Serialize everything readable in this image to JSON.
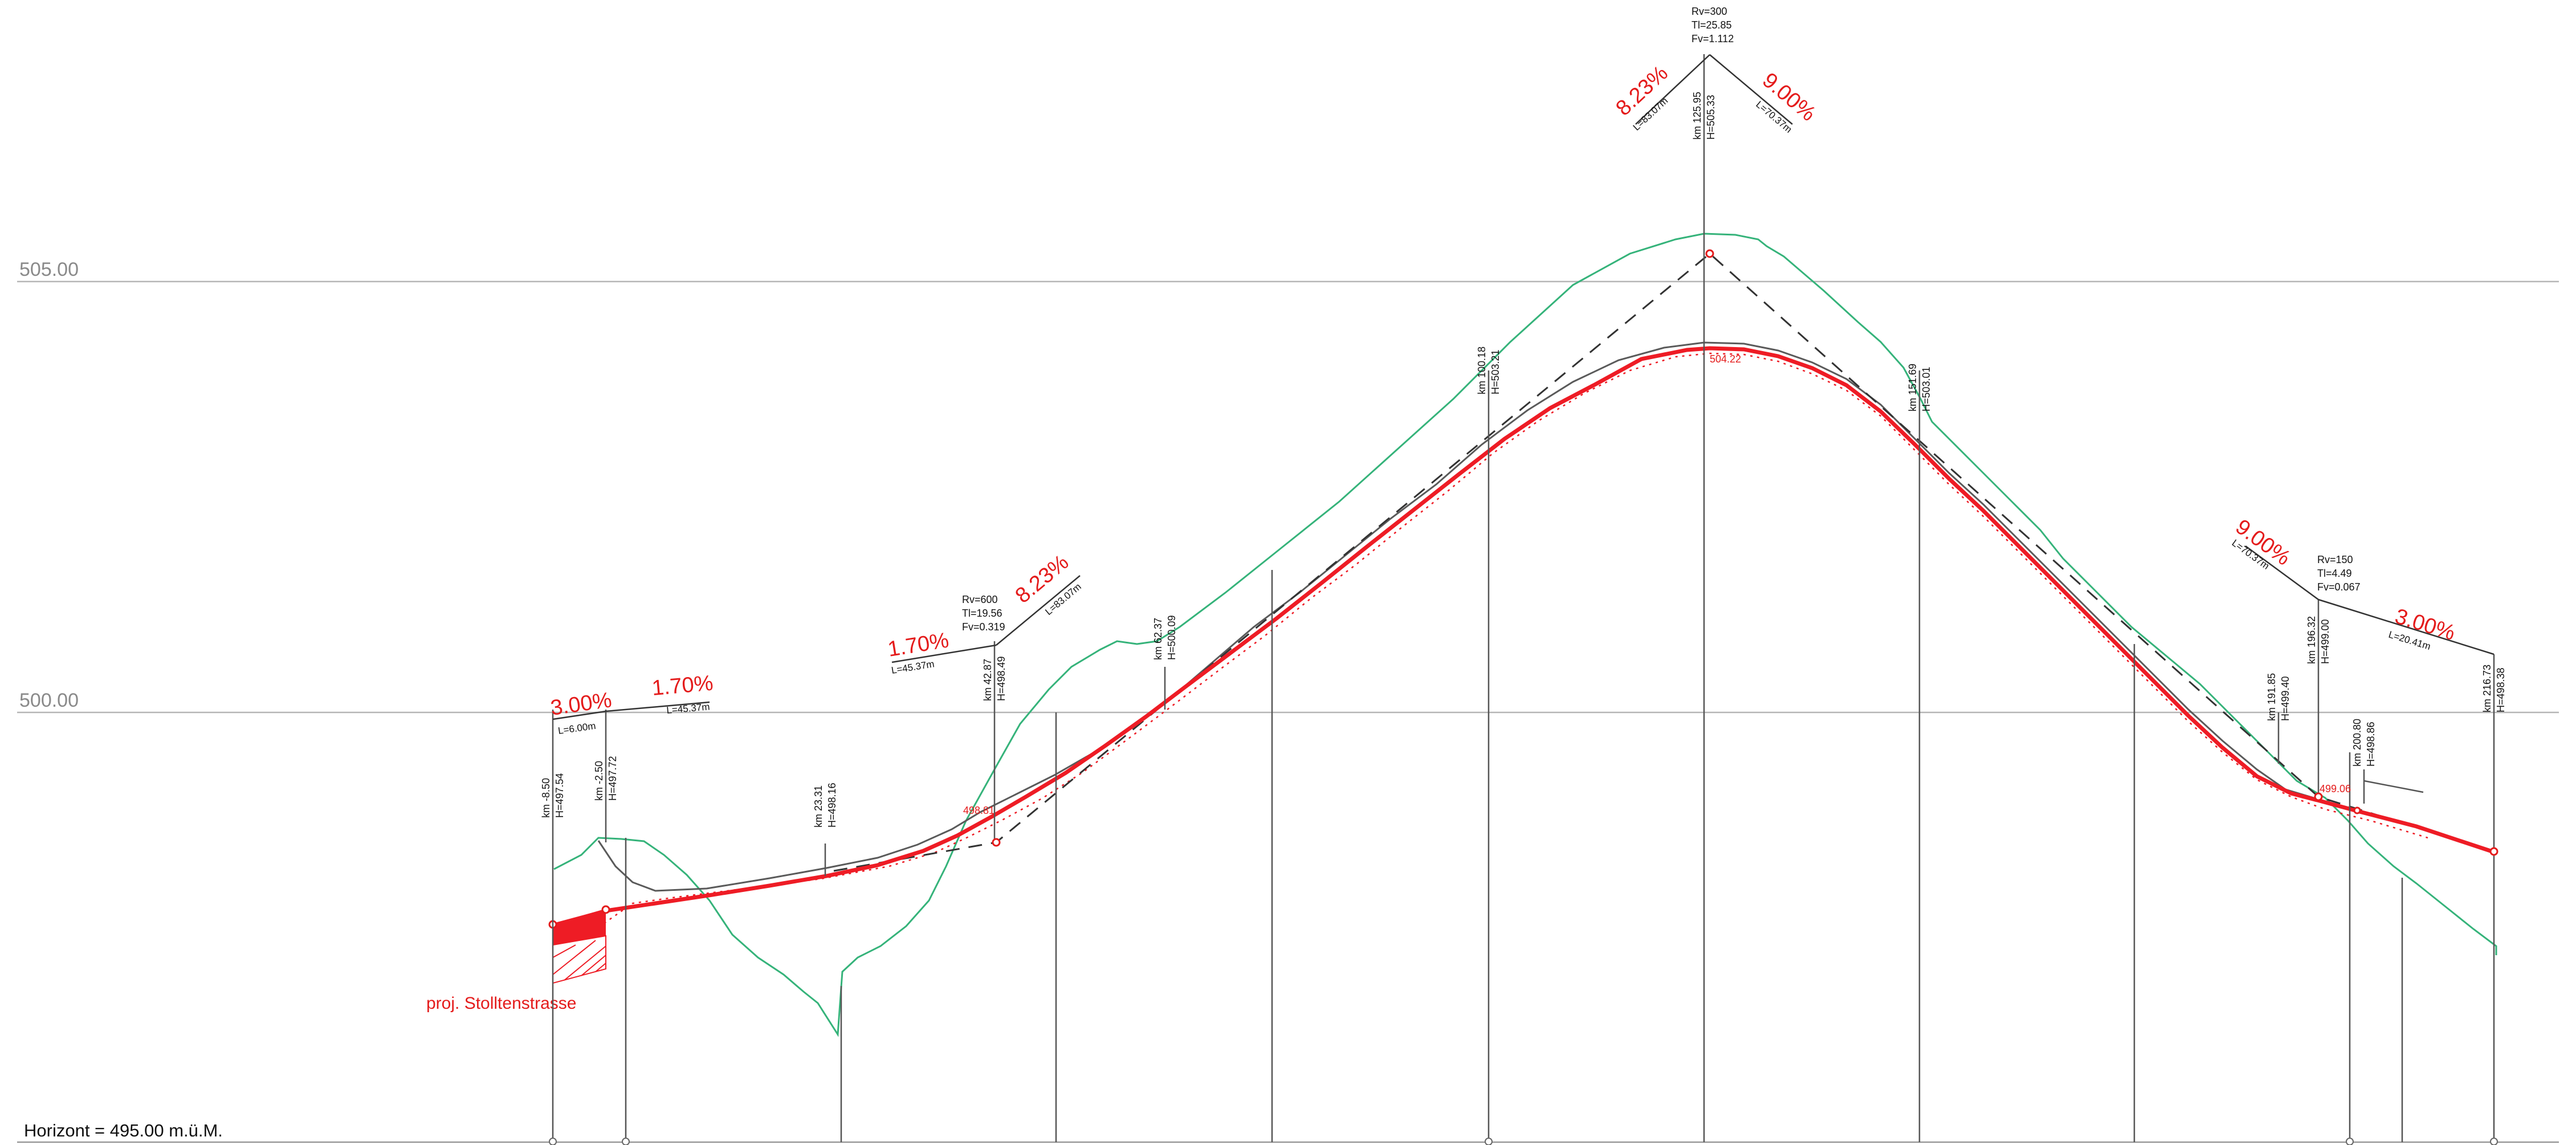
{
  "horizont": "Horizont = 495.00 m.ü.M.",
  "grid_lines": [
    {
      "label": "505.00",
      "elevation": 505.0
    },
    {
      "label": "500.00",
      "elevation": 500.0
    }
  ],
  "stations": [
    {
      "km": "km -8.50",
      "h": "H=497.54",
      "station": -8.5
    },
    {
      "km": "km -2.50",
      "h": "H=497.72",
      "station": -2.5
    },
    {
      "km": "km 23.31",
      "h": "H=498.16",
      "station": 23.31
    },
    {
      "km": "km 42.87",
      "h": "H=498.49",
      "station": 42.87
    },
    {
      "km": "km 62.37",
      "h": "H=500.09",
      "station": 62.37
    },
    {
      "km": "km 100.18",
      "h": "H=503.21",
      "station": 100.18
    },
    {
      "km": "km 125.95",
      "h": "H=505.33",
      "station": 125.95
    },
    {
      "km": "km 151.69",
      "h": "H=503.01",
      "station": 151.69
    },
    {
      "km": "km 191.85",
      "h": "H=499.40",
      "station": 191.85
    },
    {
      "km": "km 196.32",
      "h": "H=499.00",
      "station": 196.32
    },
    {
      "km": "km 200.80",
      "h": "H=498.86",
      "station": 200.8
    },
    {
      "km": "km 216.73",
      "h": "H=498.38",
      "station": 216.73
    }
  ],
  "grades": [
    {
      "pct": "3.00%",
      "len": "L=6.00m"
    },
    {
      "pct": "1.70%",
      "len": "L=45.37m"
    },
    {
      "pct": "1.70%",
      "len": "L=45.37m"
    },
    {
      "pct": "8.23%",
      "len": "L=83.07m"
    },
    {
      "pct": "8.23%",
      "len": "L=83.07m"
    },
    {
      "pct": "9.00%",
      "len": "L=70.37m"
    },
    {
      "pct": "9.00%",
      "len": "L=70.37m"
    },
    {
      "pct": "3.00%",
      "len": "L=20.41m"
    }
  ],
  "curves": [
    {
      "rv": "Rv=600",
      "tl": "Tl=19.56",
      "fv": "Fv=0.319"
    },
    {
      "rv": "Rv=300",
      "tl": "Tl=25.85",
      "fv": "Fv=1.112"
    },
    {
      "rv": "Rv=150",
      "tl": "Tl=4.49",
      "fv": "Fv=0.067"
    }
  ],
  "elevation_labels": [
    "498.81",
    "504.22",
    "499.06"
  ],
  "stollen_label": "proj. Stolltenstrasse",
  "colors": {
    "design_line": "#ee1c25",
    "terrain": "#35b37a",
    "grid": "#b5b5b5"
  }
}
